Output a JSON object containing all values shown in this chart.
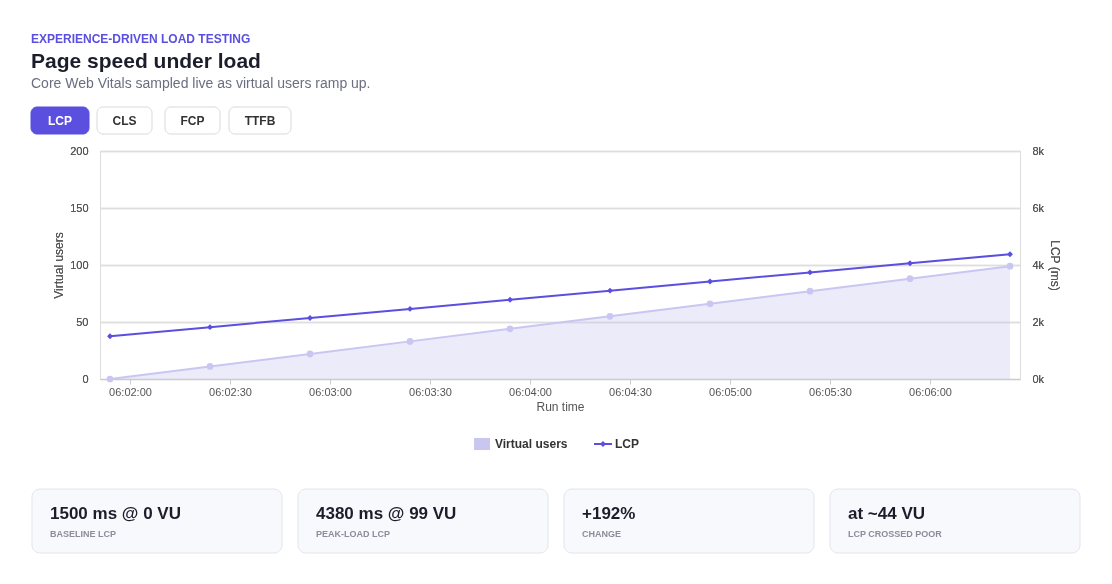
{
  "chart_data": {
    "type": "area",
    "title": "Page speed under load",
    "subtitle": "Core Web Vitals sampled live as virtual users ramp up.",
    "xlabel": "Run time",
    "ylabel": "Virtual users",
    "y2label": "LCP (ms)",
    "x": [
      6.031667,
      6.04,
      6.048333,
      6.056667,
      6.065,
      6.073333,
      6.081667,
      6.09,
      6.098333,
      6.106667
    ],
    "series": [
      {
        "name": "Virtual users",
        "color": "#c9c6f2",
        "marker": "circle",
        "values": [
          0,
          11,
          22,
          33,
          44,
          55,
          66,
          77,
          88,
          99
        ]
      },
      {
        "name": "LCP",
        "type": "line",
        "axis": "y2",
        "color": "#5b4fe0",
        "marker": "diamond",
        "line_style": "solid",
        "values": [
          1500,
          1820,
          2140,
          2460,
          2780,
          3100,
          3420,
          3740,
          4060,
          4380
        ]
      }
    ],
    "xlim": [
      6.030833,
      6.1075
    ],
    "xticks": [
      {
        "value": 6.033333,
        "label": "06:02:00"
      },
      {
        "value": 6.041667,
        "label": "06:02:30"
      },
      {
        "value": 6.05,
        "label": "06:03:00"
      },
      {
        "value": 6.058333,
        "label": "06:03:30"
      },
      {
        "value": 6.066667,
        "label": "06:04:00"
      },
      {
        "value": 6.075,
        "label": "06:04:30"
      },
      {
        "value": 6.083333,
        "label": "06:05:00"
      },
      {
        "value": 6.091667,
        "label": "06:05:30"
      },
      {
        "value": 6.1,
        "label": "06:06:00"
      }
    ],
    "ylim": [
      0,
      200
    ],
    "yticks": [
      0,
      50,
      100,
      150,
      200
    ],
    "y2lim": [
      0,
      8000
    ],
    "y2ticks": [
      {
        "value": 0,
        "label": "0k"
      },
      {
        "value": 2000,
        "label": "2k"
      },
      {
        "value": 4000,
        "label": "4k"
      },
      {
        "value": 6000,
        "label": "6k"
      },
      {
        "value": 8000,
        "label": "8k"
      }
    ],
    "grid": "y",
    "legend": "bottom",
    "annotations": [
      "EXPERIENCE-DRIVEN LOAD TESTING",
      "LCP",
      "CLS",
      "FCP",
      "TTFB",
      "1500 ms @ 0 VU",
      "BASELINE LCP",
      "4380 ms @ 99 VU",
      "PEAK-LOAD LCP",
      "+192%",
      "CHANGE",
      "at ~44 VU",
      "LCP CROSSED POOR"
    ]
  }
}
